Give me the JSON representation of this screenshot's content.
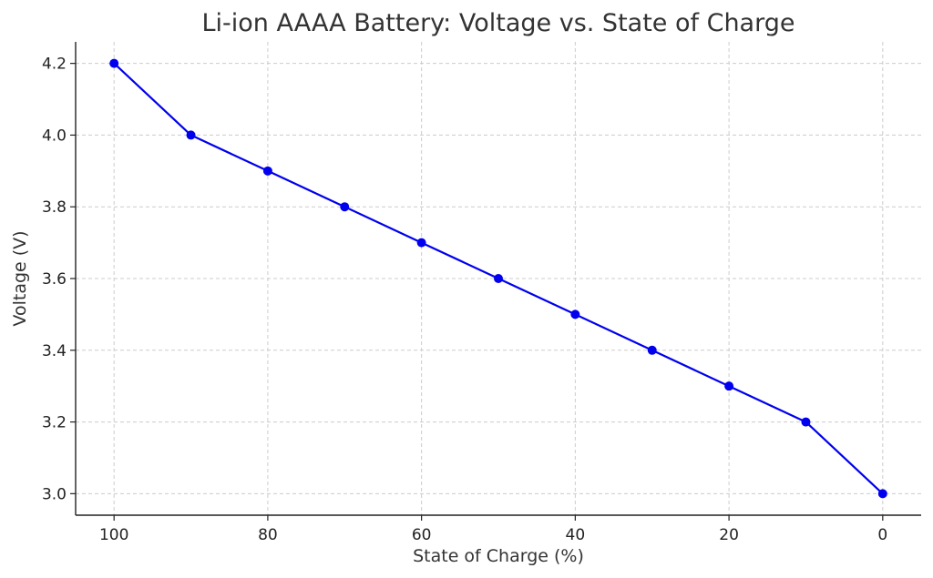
{
  "chart_data": {
    "type": "line",
    "title": "Li-ion AAAA Battery: Voltage vs. State of Charge",
    "xlabel": "State of Charge (%)",
    "ylabel": "Voltage (V)",
    "x_inverted": true,
    "xlim": [
      105,
      -5
    ],
    "ylim": [
      2.94,
      4.26
    ],
    "xticks": [
      100,
      80,
      60,
      40,
      20,
      0
    ],
    "xtick_labels": [
      "100",
      "80",
      "60",
      "40",
      "20",
      "0"
    ],
    "yticks": [
      3.0,
      3.2,
      3.4,
      3.6,
      3.8,
      4.0,
      4.2
    ],
    "ytick_labels": [
      "3.0",
      "3.2",
      "3.4",
      "3.6",
      "3.8",
      "4.0",
      "4.2"
    ],
    "grid": true,
    "series": [
      {
        "x": [
          100,
          90,
          80,
          70,
          60,
          50,
          40,
          30,
          20,
          10,
          0
        ],
        "y": [
          4.2,
          4.0,
          3.9,
          3.8,
          3.7,
          3.6,
          3.5,
          3.4,
          3.3,
          3.2,
          3.0
        ],
        "color": "#0000ee",
        "marker": "circle"
      }
    ]
  }
}
